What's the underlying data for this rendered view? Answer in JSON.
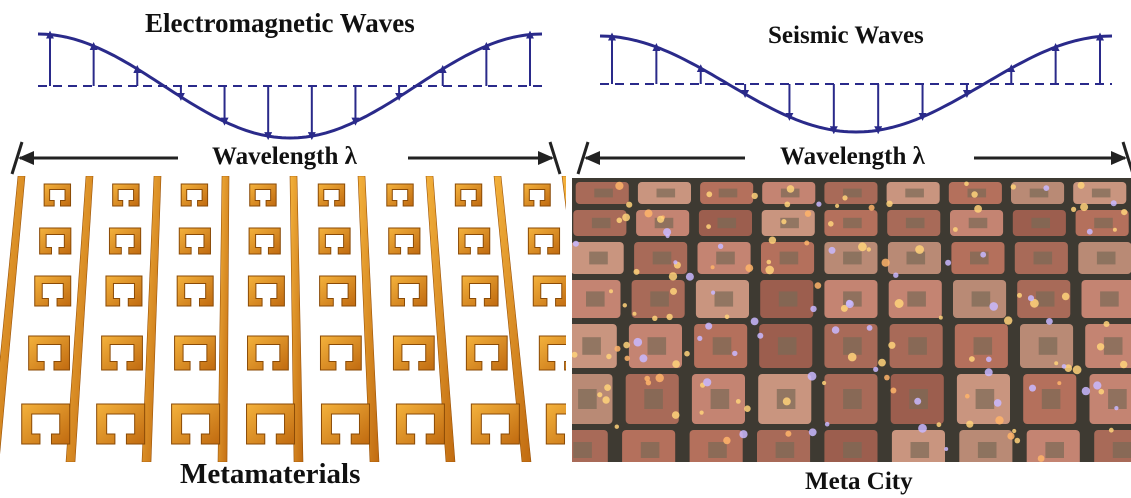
{
  "titles": {
    "electromagnetic": "Electromagnetic Waves",
    "seismic": "Seismic Waves",
    "metamaterials": "Metamaterials",
    "meta_city": "Meta City"
  },
  "wavelength_label": "Wavelength λ",
  "colors": {
    "wave": "#2a2a8a",
    "arrow_dark": "#222222",
    "metal_light": "#f4b23c",
    "metal_dark": "#c06a10",
    "city_roof": "#b8705e",
    "city_street": "#3e3a32"
  }
}
